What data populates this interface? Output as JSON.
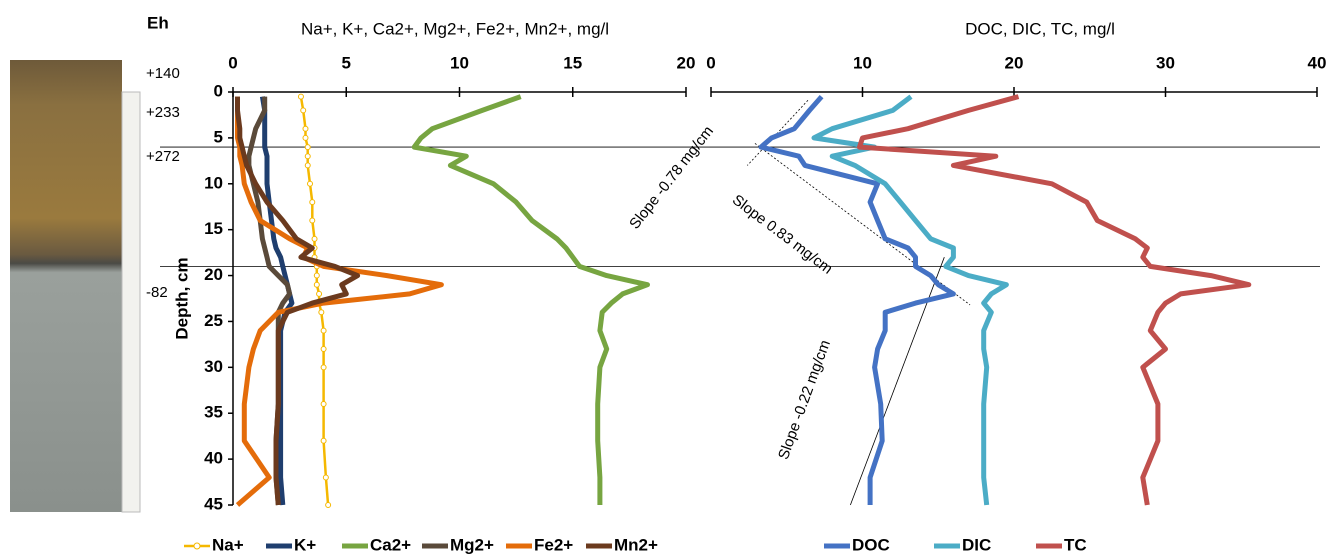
{
  "core": {
    "label": "Eh",
    "eh_labels": [
      "+140",
      "+233",
      "+272",
      "-82"
    ]
  },
  "chart_data": [
    {
      "type": "line",
      "title": "Na+, K+, Ca2+, Mg2+, Fe2+, Mn2+, mg/l",
      "ylabel": "Depth, cm",
      "xlim": [
        0,
        20
      ],
      "xticks": [
        0,
        5,
        10,
        15,
        20
      ],
      "ylim": [
        0,
        45
      ],
      "yticks": [
        0,
        5,
        10,
        15,
        20,
        25,
        30,
        35,
        40,
        45
      ],
      "y_inverted": true,
      "hlines": [
        6,
        19
      ],
      "y": [
        0.5,
        2,
        4,
        5,
        6,
        7,
        8,
        10,
        12,
        14,
        16,
        17,
        18,
        19,
        20,
        21,
        22,
        23,
        24,
        26,
        28,
        30,
        34,
        38,
        42,
        45
      ],
      "series": [
        {
          "name": "Na+",
          "color": "#f5b800",
          "markers": true,
          "values": [
            3.0,
            3.1,
            3.2,
            3.2,
            3.3,
            3.3,
            3.3,
            3.4,
            3.5,
            3.5,
            3.6,
            3.6,
            3.6,
            3.7,
            3.7,
            3.7,
            3.8,
            3.8,
            3.9,
            4.0,
            4.0,
            4.0,
            4.0,
            4.0,
            4.1,
            4.2
          ]
        },
        {
          "name": "K+",
          "color": "#1f3e6e",
          "values": [
            1.3,
            1.4,
            1.4,
            1.4,
            1.4,
            1.5,
            1.5,
            1.5,
            1.6,
            1.7,
            1.8,
            1.9,
            2.1,
            2.2,
            2.3,
            2.4,
            2.5,
            2.6,
            2.3,
            2.1,
            2.1,
            2.1,
            2.1,
            2.1,
            2.1,
            2.2
          ]
        },
        {
          "name": "Ca2+",
          "color": "#77a541",
          "values": [
            12.7,
            11.0,
            8.8,
            8.3,
            8.0,
            10.3,
            9.6,
            11.5,
            12.5,
            13.2,
            14.3,
            14.7,
            15.0,
            15.3,
            16.5,
            18.3,
            17.2,
            16.7,
            16.3,
            16.2,
            16.5,
            16.2,
            16.1,
            16.1,
            16.2,
            16.2
          ]
        },
        {
          "name": "Mg2+",
          "color": "#5a4a3a",
          "values": [
            1.4,
            1.4,
            1.0,
            0.9,
            0.8,
            0.7,
            0.7,
            0.9,
            1.1,
            1.2,
            1.3,
            1.4,
            1.5,
            1.6,
            2.0,
            2.4,
            2.5,
            2.2,
            2.0,
            2.0,
            2.0,
            2.0,
            2.0,
            1.9,
            1.9,
            2.0
          ]
        },
        {
          "name": "Fe2+",
          "color": "#e46c0a",
          "values": [
            0.2,
            0.2,
            0.2,
            0.2,
            0.3,
            0.3,
            0.4,
            0.5,
            0.8,
            1.2,
            2.5,
            3.3,
            3.1,
            4.0,
            6.8,
            9.2,
            7.8,
            4.0,
            2.0,
            1.2,
            0.9,
            0.7,
            0.5,
            0.5,
            1.6,
            0.2
          ]
        },
        {
          "name": "Mn2+",
          "color": "#6b3a1e",
          "values": [
            0.2,
            0.2,
            0.3,
            0.3,
            0.4,
            0.5,
            0.6,
            1.0,
            1.5,
            2.2,
            2.8,
            3.5,
            3.0,
            4.5,
            5.5,
            4.8,
            5.0,
            3.5,
            2.4,
            2.0,
            2.0,
            2.0,
            2.0,
            1.9,
            1.9,
            2.0
          ]
        }
      ]
    },
    {
      "type": "line",
      "title": "DOC, DIC, TC, mg/l",
      "xlim": [
        0,
        40
      ],
      "xticks": [
        0,
        10,
        20,
        30,
        40
      ],
      "ylim": [
        0,
        45
      ],
      "y_inverted": true,
      "y": [
        0.5,
        2,
        4,
        5,
        6,
        7,
        8,
        10,
        12,
        14,
        16,
        17,
        18,
        19,
        20,
        21,
        22,
        23,
        24,
        26,
        28,
        30,
        34,
        38,
        42,
        45
      ],
      "series": [
        {
          "name": "DOC",
          "color": "#4472c4",
          "values": [
            7.3,
            6.5,
            5.5,
            4.0,
            3.3,
            5.8,
            6.2,
            11.0,
            10.5,
            11.0,
            11.5,
            13.0,
            13.5,
            13.5,
            14.5,
            15.0,
            16.0,
            13.5,
            11.5,
            11.5,
            11.0,
            10.8,
            11.2,
            11.3,
            10.5,
            10.5
          ]
        },
        {
          "name": "DIC",
          "color": "#4bacc6",
          "values": [
            13.2,
            12.0,
            8.0,
            6.8,
            10.8,
            8.0,
            9.5,
            11.5,
            12.5,
            13.5,
            14.5,
            16.0,
            16.0,
            15.5,
            17.0,
            19.5,
            18.5,
            18.0,
            18.5,
            18.0,
            18.0,
            18.2,
            18.0,
            18.0,
            18.0,
            18.2
          ]
        },
        {
          "name": "TC",
          "color": "#c0504d",
          "values": [
            20.3,
            17.0,
            13.0,
            10.0,
            9.8,
            18.8,
            16.0,
            22.5,
            24.8,
            25.5,
            28.0,
            28.8,
            28.5,
            29.0,
            33.0,
            35.5,
            31.0,
            30.0,
            29.5,
            29.0,
            30.0,
            28.5,
            29.5,
            29.5,
            28.5,
            28.8
          ]
        }
      ],
      "trend_lines": [
        {
          "label": "Slope -0.78 mg/cm",
          "x": [
            6.4,
            2.4
          ],
          "y": [
            0.9,
            8
          ]
        },
        {
          "label": "Slope 0.83 mg/cm",
          "x": [
            2.9,
            17.1
          ],
          "y": [
            5.6,
            23.2
          ]
        },
        {
          "label": "Slope -0.22 mg/cm",
          "x": [
            15.4,
            9.2
          ],
          "y": [
            18,
            45
          ]
        }
      ]
    }
  ]
}
